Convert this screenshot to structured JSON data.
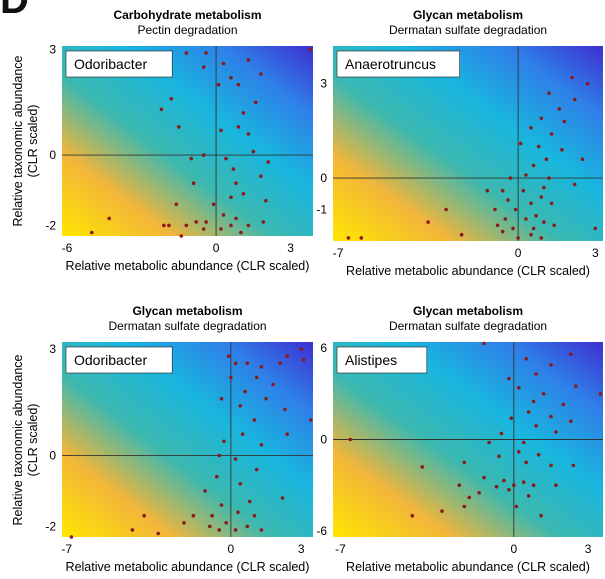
{
  "panel_letter": "D",
  "shared": {
    "ylabel_line1": "Relative taxonomic abundance",
    "ylabel_line2": "(CLR scaled)"
  },
  "chart_data": [
    {
      "type": "scatter",
      "title": "Carbohydrate metabolism",
      "subtitle": "Pectin degradation",
      "taxon": "Odoribacter",
      "xlabel": "Relative metabolic abundance (CLR scaled)",
      "xlim": [
        -6.2,
        3.9
      ],
      "ylim": [
        -2.3,
        3.1
      ],
      "xticks": [
        -6,
        0,
        3
      ],
      "yticks": [
        -2,
        0,
        3
      ],
      "points": [
        [
          -1.2,
          2.9
        ],
        [
          -0.4,
          2.9
        ],
        [
          -0.5,
          2.5
        ],
        [
          0.3,
          2.6
        ],
        [
          1.3,
          2.7
        ],
        [
          1.8,
          2.3
        ],
        [
          0.6,
          2.2
        ],
        [
          0.9,
          2.0
        ],
        [
          0.1,
          2.0
        ],
        [
          1.6,
          1.5
        ],
        [
          -1.8,
          1.6
        ],
        [
          -2.2,
          1.3
        ],
        [
          1.1,
          1.2
        ],
        [
          -1.5,
          0.8
        ],
        [
          0.2,
          0.7
        ],
        [
          1.3,
          0.6
        ],
        [
          0.9,
          0.8
        ],
        [
          -0.5,
          0.0
        ],
        [
          0.4,
          -0.1
        ],
        [
          1.5,
          0.1
        ],
        [
          -1.0,
          -0.1
        ],
        [
          2.1,
          -0.2
        ],
        [
          0.7,
          -0.4
        ],
        [
          1.8,
          -0.6
        ],
        [
          0.8,
          -0.8
        ],
        [
          -0.9,
          -0.8
        ],
        [
          1.1,
          -1.1
        ],
        [
          0.6,
          -1.2
        ],
        [
          2.0,
          -1.3
        ],
        [
          -0.1,
          -1.4
        ],
        [
          -1.6,
          -1.4
        ],
        [
          0.3,
          -1.7
        ],
        [
          0.8,
          -1.8
        ],
        [
          -0.8,
          -1.9
        ],
        [
          -0.4,
          -1.9
        ],
        [
          -1.9,
          -2.0
        ],
        [
          -1.2,
          -2.0
        ],
        [
          0.6,
          -2.0
        ],
        [
          1.3,
          -2.0
        ],
        [
          0.2,
          -2.1
        ],
        [
          -0.5,
          -2.1
        ],
        [
          1.0,
          -2.2
        ],
        [
          -4.3,
          -1.8
        ],
        [
          -5.0,
          -2.2
        ],
        [
          -1.4,
          -2.3
        ],
        [
          3.8,
          3.0
        ],
        [
          -2.1,
          -2.0
        ],
        [
          1.9,
          -1.9
        ]
      ]
    },
    {
      "type": "scatter",
      "title": "Glycan metabolism",
      "subtitle": "Dermatan sulfate degradation",
      "taxon": "Anaerotruncus",
      "xlabel": "Relative metabolic abundance (CLR scaled)",
      "xlim": [
        -7.2,
        3.3
      ],
      "ylim": [
        -2.0,
        4.2
      ],
      "xticks": [
        -7,
        0,
        3
      ],
      "yticks": [
        -1,
        0,
        3
      ],
      "points": [
        [
          2.1,
          3.2
        ],
        [
          2.7,
          3.0
        ],
        [
          1.2,
          2.7
        ],
        [
          2.2,
          2.5
        ],
        [
          1.6,
          2.2
        ],
        [
          0.9,
          1.9
        ],
        [
          1.8,
          1.8
        ],
        [
          0.5,
          1.6
        ],
        [
          1.3,
          1.4
        ],
        [
          0.8,
          1.0
        ],
        [
          0.1,
          1.1
        ],
        [
          1.7,
          0.9
        ],
        [
          1.1,
          0.6
        ],
        [
          0.6,
          0.4
        ],
        [
          2.5,
          0.6
        ],
        [
          0.3,
          0.1
        ],
        [
          1.2,
          0.0
        ],
        [
          -0.3,
          0.0
        ],
        [
          1.0,
          -0.3
        ],
        [
          0.2,
          -0.4
        ],
        [
          -0.6,
          -0.4
        ],
        [
          -1.2,
          -0.4
        ],
        [
          0.9,
          -0.6
        ],
        [
          -0.4,
          -0.7
        ],
        [
          0.5,
          -0.8
        ],
        [
          1.3,
          -0.8
        ],
        [
          -0.1,
          -1.0
        ],
        [
          -0.9,
          -1.0
        ],
        [
          0.7,
          -1.2
        ],
        [
          -0.5,
          -1.3
        ],
        [
          0.3,
          -1.3
        ],
        [
          1.0,
          -1.4
        ],
        [
          -0.8,
          -1.5
        ],
        [
          -0.2,
          -1.6
        ],
        [
          0.6,
          -1.6
        ],
        [
          1.4,
          -1.5
        ],
        [
          -0.6,
          -1.7
        ],
        [
          0.5,
          -1.8
        ],
        [
          -3.5,
          -1.4
        ],
        [
          -2.2,
          -1.8
        ],
        [
          -6.6,
          -1.9
        ],
        [
          -6.1,
          -1.9
        ],
        [
          -2.8,
          -1.0
        ],
        [
          0.9,
          -1.9
        ],
        [
          0.0,
          -1.9
        ],
        [
          2.2,
          -0.2
        ],
        [
          3.0,
          -1.6
        ]
      ]
    },
    {
      "type": "scatter",
      "title": "Glycan metabolism",
      "subtitle": "Dermatan sulfate degradation",
      "taxon": "Odoribacter",
      "xlabel": "Relative metabolic abundance (CLR scaled)",
      "xlim": [
        -7.2,
        3.5
      ],
      "ylim": [
        -2.3,
        3.2
      ],
      "xticks": [
        -7,
        0,
        3
      ],
      "yticks": [
        -2,
        0,
        3
      ],
      "points": [
        [
          -0.1,
          2.8
        ],
        [
          0.2,
          2.6
        ],
        [
          0.0,
          2.2
        ],
        [
          0.7,
          2.6
        ],
        [
          1.3,
          2.5
        ],
        [
          2.1,
          2.6
        ],
        [
          2.4,
          2.8
        ],
        [
          3.0,
          3.0
        ],
        [
          3.1,
          2.7
        ],
        [
          1.1,
          2.2
        ],
        [
          1.8,
          2.0
        ],
        [
          0.6,
          1.8
        ],
        [
          1.5,
          1.6
        ],
        [
          0.4,
          1.4
        ],
        [
          -0.4,
          1.6
        ],
        [
          2.3,
          1.3
        ],
        [
          1.0,
          1.0
        ],
        [
          3.4,
          1.0
        ],
        [
          0.5,
          0.6
        ],
        [
          2.4,
          0.6
        ],
        [
          1.3,
          0.3
        ],
        [
          -0.3,
          0.4
        ],
        [
          -0.5,
          0.0
        ],
        [
          0.2,
          -0.1
        ],
        [
          1.1,
          -0.4
        ],
        [
          -0.6,
          -0.6
        ],
        [
          0.4,
          -0.8
        ],
        [
          -1.1,
          -1.0
        ],
        [
          0.8,
          -1.3
        ],
        [
          2.2,
          -1.2
        ],
        [
          -0.4,
          -1.4
        ],
        [
          0.3,
          -1.6
        ],
        [
          1.0,
          -1.7
        ],
        [
          -0.8,
          -1.7
        ],
        [
          -1.6,
          -1.7
        ],
        [
          -0.2,
          -1.9
        ],
        [
          0.7,
          -2.0
        ],
        [
          -0.9,
          -2.0
        ],
        [
          0.2,
          -2.1
        ],
        [
          1.3,
          -2.1
        ],
        [
          -0.5,
          -2.1
        ],
        [
          -2.0,
          -1.9
        ],
        [
          -3.1,
          -2.2
        ],
        [
          -4.2,
          -2.1
        ],
        [
          -6.8,
          -2.3
        ],
        [
          -3.7,
          -1.7
        ]
      ]
    },
    {
      "type": "scatter",
      "title": "Glycan metabolism",
      "subtitle": "Dermatan sulfate degradation",
      "taxon": "Alistipes",
      "xlabel": "Relative metabolic abundance (CLR scaled)",
      "xlim": [
        -7.3,
        3.6
      ],
      "ylim": [
        -6.4,
        6.4
      ],
      "xticks": [
        -7,
        0,
        3
      ],
      "yticks": [
        -6,
        0,
        6
      ],
      "points": [
        [
          -1.2,
          6.3
        ],
        [
          0.5,
          5.3
        ],
        [
          1.5,
          4.9
        ],
        [
          2.3,
          5.6
        ],
        [
          0.9,
          4.3
        ],
        [
          -0.2,
          4.0
        ],
        [
          0.2,
          3.4
        ],
        [
          1.2,
          3.0
        ],
        [
          2.5,
          3.5
        ],
        [
          3.5,
          3.0
        ],
        [
          0.8,
          2.5
        ],
        [
          2.0,
          2.3
        ],
        [
          0.6,
          1.8
        ],
        [
          1.5,
          1.5
        ],
        [
          -0.1,
          1.4
        ],
        [
          2.3,
          1.2
        ],
        [
          0.9,
          0.9
        ],
        [
          -0.5,
          0.4
        ],
        [
          1.7,
          0.5
        ],
        [
          0.4,
          -0.2
        ],
        [
          -1.0,
          -0.2
        ],
        [
          0.2,
          -0.8
        ],
        [
          1.0,
          -1.0
        ],
        [
          -0.6,
          -1.1
        ],
        [
          -2.0,
          -1.5
        ],
        [
          0.5,
          -1.5
        ],
        [
          1.5,
          -1.7
        ],
        [
          -3.7,
          -1.8
        ],
        [
          -1.2,
          -2.5
        ],
        [
          -0.4,
          -2.7
        ],
        [
          0.4,
          -2.8
        ],
        [
          -0.7,
          -3.1
        ],
        [
          0.8,
          -3.0
        ],
        [
          1.7,
          -3.0
        ],
        [
          -1.4,
          -3.5
        ],
        [
          -0.2,
          -3.3
        ],
        [
          0.6,
          -3.7
        ],
        [
          -2.2,
          -3.0
        ],
        [
          -4.1,
          -5.0
        ],
        [
          -2.0,
          -4.4
        ],
        [
          0.1,
          -4.4
        ],
        [
          -2.9,
          -4.7
        ],
        [
          -6.6,
          0.0
        ],
        [
          1.1,
          -5.0
        ],
        [
          -1.8,
          -3.8
        ],
        [
          0.0,
          -3.0
        ],
        [
          2.4,
          -1.7
        ]
      ]
    }
  ]
}
